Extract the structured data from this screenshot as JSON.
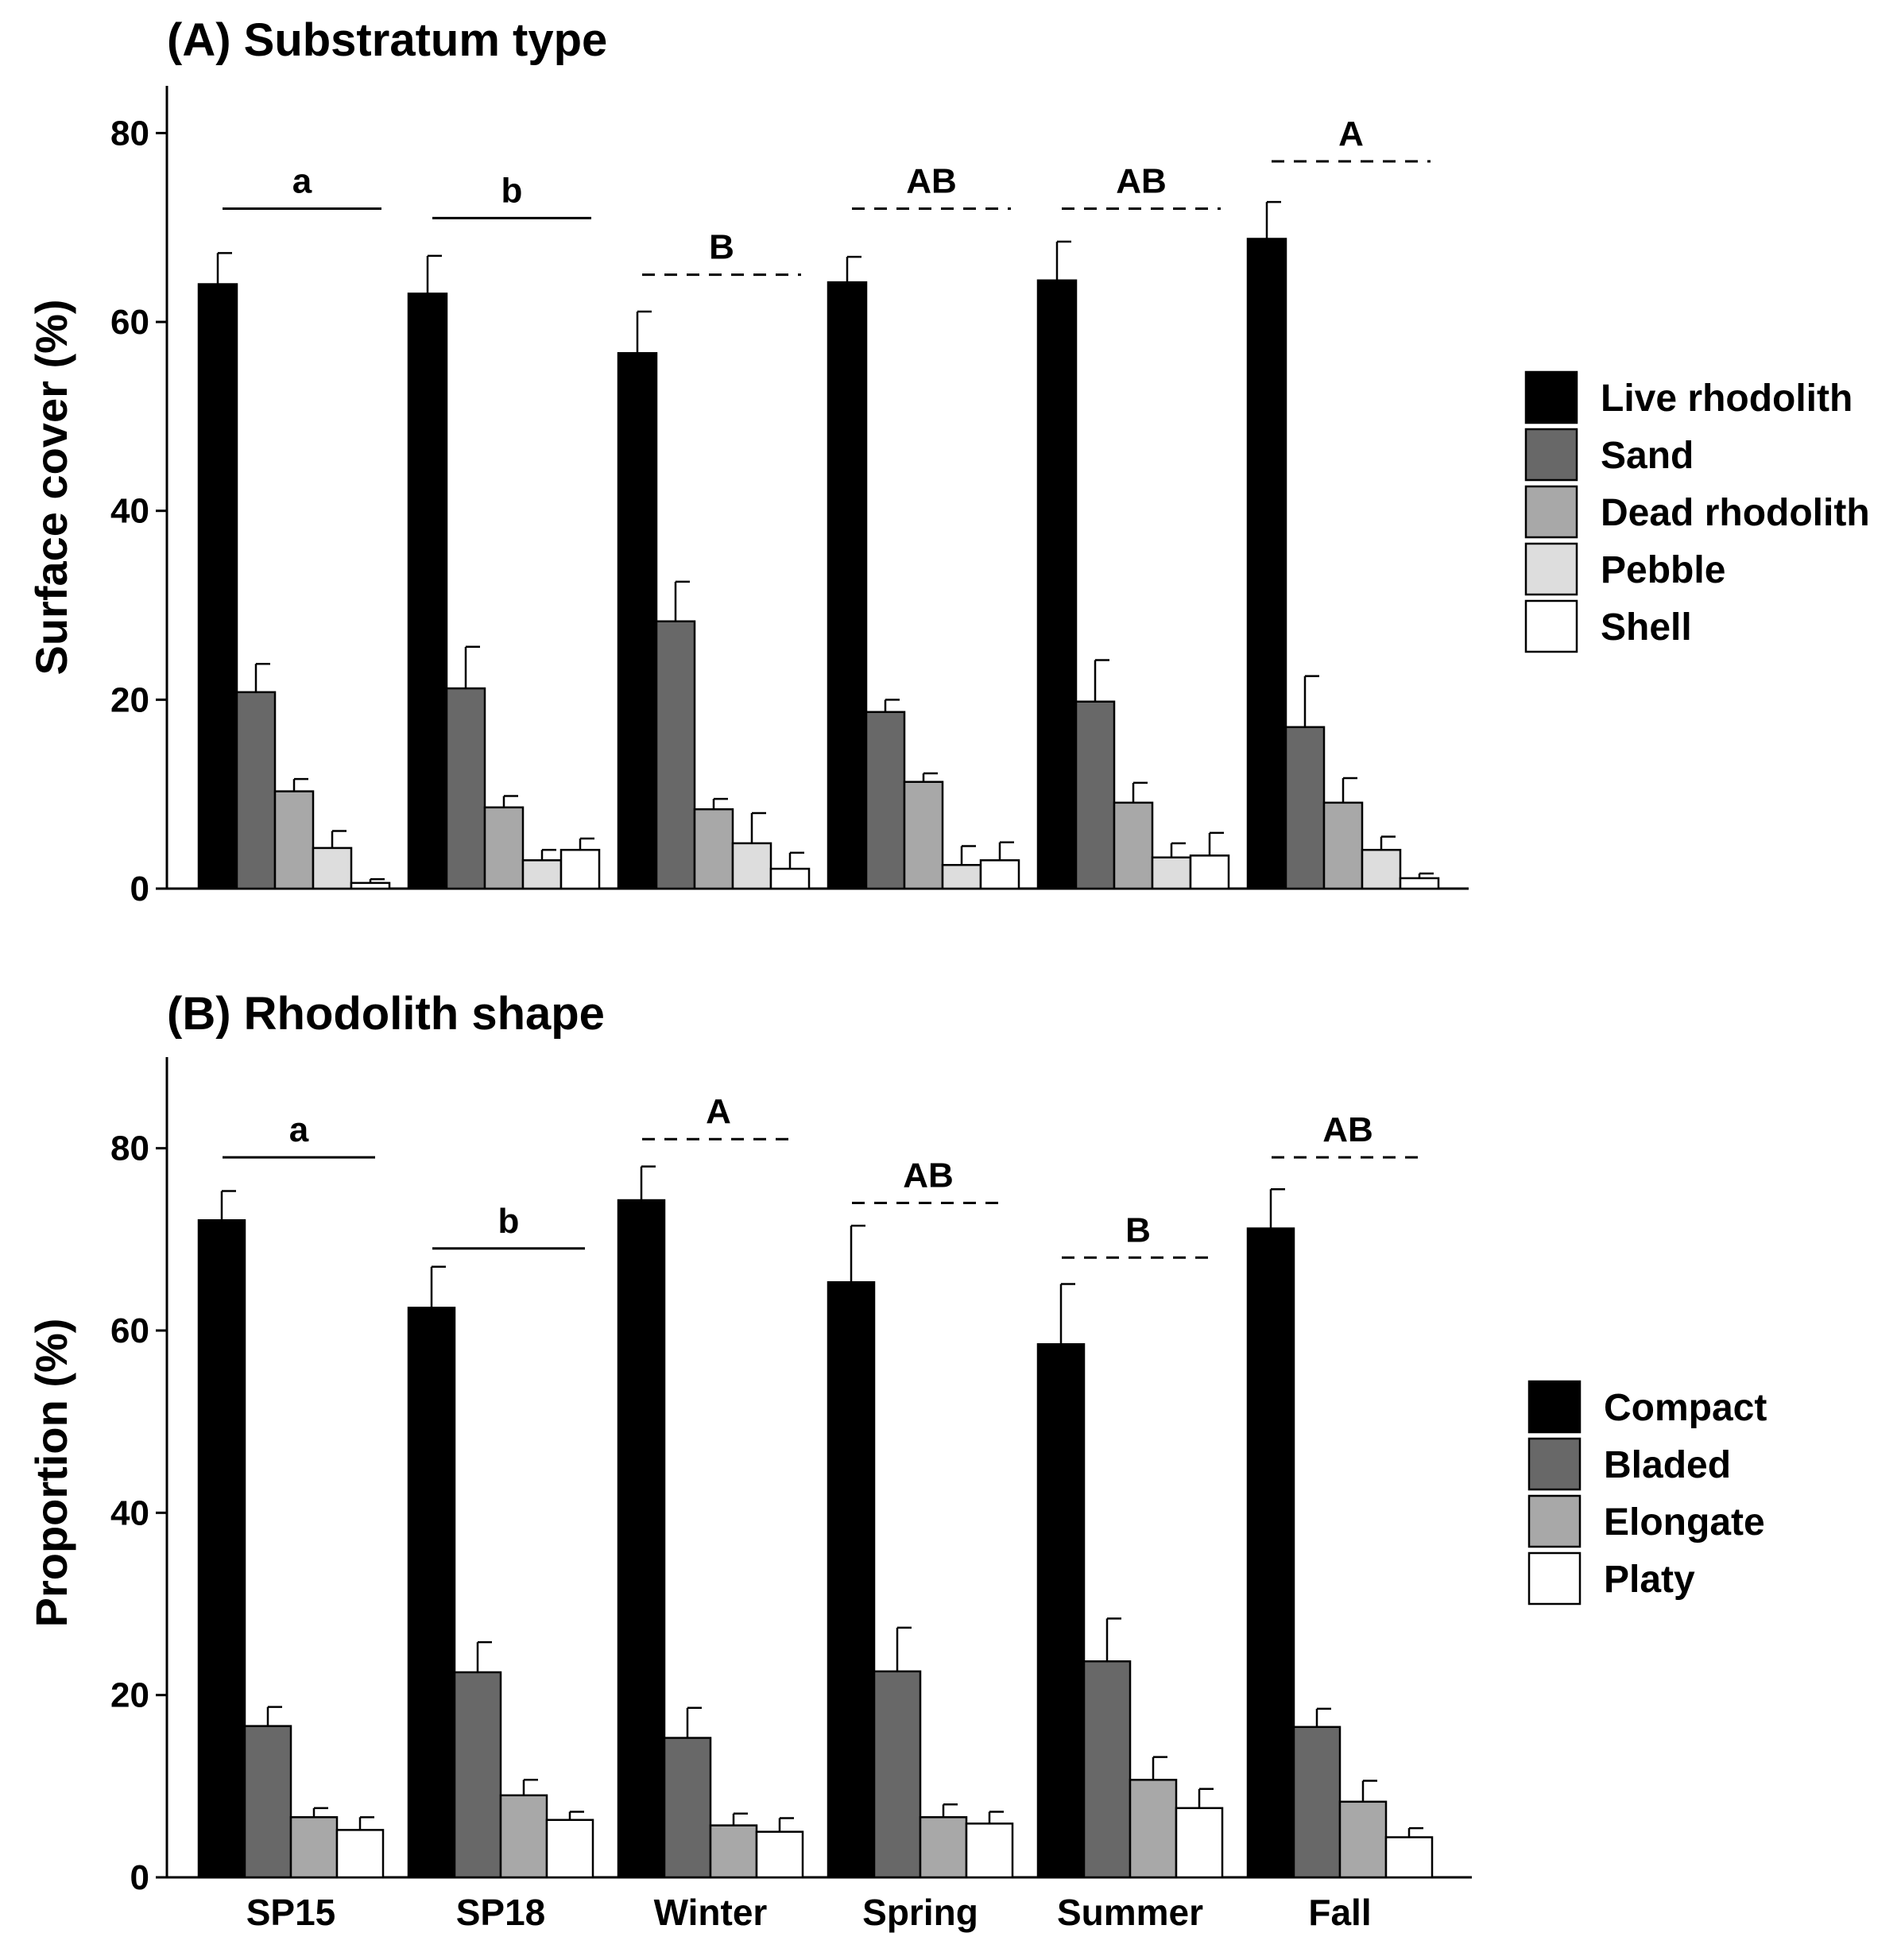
{
  "chart_data": [
    {
      "type": "bar",
      "title": "(A) Substratum type",
      "xlabel": "",
      "ylabel": "Surface cover (%)",
      "ylim": [
        0,
        85
      ],
      "yticks": [
        0,
        20,
        40,
        60,
        80
      ],
      "categories": [
        "SP15",
        "SP18",
        "Winter",
        "Spring",
        "Summer",
        "Fall"
      ],
      "show_category_labels": false,
      "legend_position": "right",
      "series": [
        {
          "name": "Live rhodolith",
          "color": "#000000",
          "values": [
            64.0,
            63.0,
            56.7,
            64.2,
            64.4,
            68.8
          ],
          "errors": [
            3.3,
            4.0,
            4.4,
            2.7,
            4.1,
            3.9
          ]
        },
        {
          "name": "Sand",
          "color": "#686868",
          "values": [
            20.8,
            21.2,
            28.3,
            18.7,
            19.8,
            17.1
          ],
          "errors": [
            3.0,
            4.4,
            4.2,
            1.3,
            4.4,
            5.4
          ]
        },
        {
          "name": "Dead rhodolith",
          "color": "#a8a8a8",
          "values": [
            10.3,
            8.6,
            8.4,
            11.3,
            9.1,
            9.1
          ],
          "errors": [
            1.3,
            1.2,
            1.1,
            0.9,
            2.1,
            2.6
          ]
        },
        {
          "name": "Pebble",
          "color": "#dddddd",
          "values": [
            4.3,
            3.0,
            4.8,
            2.5,
            3.3,
            4.1
          ],
          "errors": [
            1.8,
            1.1,
            3.2,
            2.0,
            1.5,
            1.4
          ]
        },
        {
          "name": "Shell",
          "color": "#ffffff",
          "values": [
            0.6,
            4.1,
            2.1,
            3.0,
            3.5,
            1.1
          ],
          "errors": [
            0.4,
            1.2,
            1.7,
            1.9,
            2.4,
            0.5
          ]
        }
      ],
      "significance": [
        {
          "label": "a",
          "from": 0,
          "to": 0,
          "y": 72,
          "style": "solid"
        },
        {
          "label": "b",
          "from": 1,
          "to": 1,
          "y": 71,
          "style": "solid"
        },
        {
          "label": "B",
          "from": 2,
          "to": 2,
          "y": 65,
          "style": "dashed"
        },
        {
          "label": "AB",
          "from": 3,
          "to": 3,
          "y": 72,
          "style": "dashed"
        },
        {
          "label": "AB",
          "from": 4,
          "to": 4,
          "y": 72,
          "style": "dashed"
        },
        {
          "label": "A",
          "from": 5,
          "to": 5,
          "y": 77,
          "style": "dashed"
        }
      ]
    },
    {
      "type": "bar",
      "title": "(B) Rhodolith shape",
      "xlabel": "",
      "ylabel": "Proportion (%)",
      "ylim": [
        0,
        90
      ],
      "yticks": [
        0,
        20,
        40,
        60,
        80
      ],
      "categories": [
        "SP15",
        "SP18",
        "Winter",
        "Spring",
        "Summer",
        "Fall"
      ],
      "show_category_labels": true,
      "legend_position": "right",
      "series": [
        {
          "name": "Compact",
          "color": "#000000",
          "values": [
            72.1,
            62.5,
            74.3,
            65.3,
            58.5,
            71.2
          ],
          "errors": [
            3.2,
            4.5,
            3.7,
            6.2,
            6.6,
            4.3
          ]
        },
        {
          "name": "Bladed",
          "color": "#686868",
          "values": [
            16.6,
            22.5,
            15.3,
            22.6,
            23.7,
            16.5
          ],
          "errors": [
            2.1,
            3.3,
            3.3,
            4.8,
            4.7,
            2.0
          ]
        },
        {
          "name": "Elongate",
          "color": "#a8a8a8",
          "values": [
            6.6,
            9.0,
            5.7,
            6.6,
            10.7,
            8.3
          ],
          "errors": [
            1.0,
            1.7,
            1.3,
            1.4,
            2.5,
            2.3
          ]
        },
        {
          "name": "Platy",
          "color": "#ffffff",
          "values": [
            5.2,
            6.3,
            5.0,
            5.9,
            7.6,
            4.4
          ],
          "errors": [
            1.4,
            0.9,
            1.5,
            1.3,
            2.1,
            1.0
          ]
        }
      ],
      "significance": [
        {
          "label": "a",
          "from": 0,
          "to": 0,
          "y": 79,
          "style": "solid"
        },
        {
          "label": "b",
          "from": 1,
          "to": 1,
          "y": 69,
          "style": "solid"
        },
        {
          "label": "A",
          "from": 2,
          "to": 2,
          "y": 81,
          "style": "dashed"
        },
        {
          "label": "AB",
          "from": 3,
          "to": 3,
          "y": 74,
          "style": "dashed"
        },
        {
          "label": "B",
          "from": 4,
          "to": 4,
          "y": 68,
          "style": "dashed"
        },
        {
          "label": "AB",
          "from": 5,
          "to": 5,
          "y": 79,
          "style": "dashed"
        }
      ]
    }
  ]
}
